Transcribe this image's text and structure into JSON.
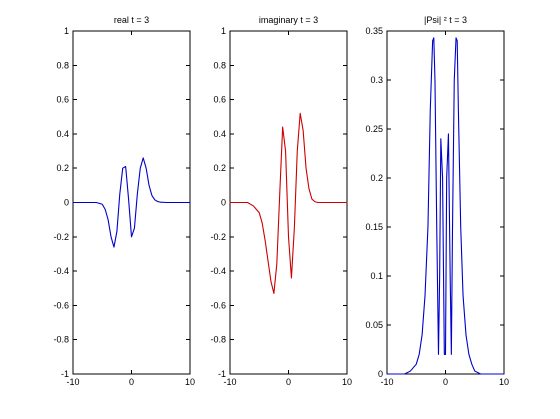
{
  "chart_data": [
    {
      "type": "line",
      "title": "real t = 3",
      "xlim": [
        -10,
        10
      ],
      "ylim": [
        -1,
        1
      ],
      "xticks": [
        -10,
        0,
        10
      ],
      "yticks": [
        -1,
        -0.8,
        -0.6,
        -0.4,
        -0.2,
        0,
        0.2,
        0.4,
        0.6,
        0.8,
        1
      ],
      "grid": false,
      "series": [
        {
          "color": "#0000cc",
          "x": [
            -10,
            -6,
            -5,
            -4.5,
            -4,
            -3.5,
            -3,
            -2.5,
            -2,
            -1.5,
            -1,
            -0.5,
            0,
            0.5,
            1,
            1.5,
            2,
            2.5,
            3,
            3.5,
            4,
            4.5,
            5,
            6,
            10
          ],
          "y": [
            0,
            0,
            -0.01,
            -0.04,
            -0.1,
            -0.2,
            -0.26,
            -0.17,
            0.05,
            0.2,
            0.21,
            0.02,
            -0.2,
            -0.15,
            0.05,
            0.2,
            0.26,
            0.2,
            0.1,
            0.04,
            0.015,
            0.005,
            0.002,
            0,
            0
          ]
        }
      ]
    },
    {
      "type": "line",
      "title": "imaginary t = 3",
      "xlim": [
        -10,
        10
      ],
      "ylim": [
        -1,
        1
      ],
      "xticks": [
        -10,
        0,
        10
      ],
      "yticks": [
        -1,
        -0.8,
        -0.6,
        -0.4,
        -0.2,
        0,
        0.2,
        0.4,
        0.6,
        0.8,
        1
      ],
      "grid": false,
      "series": [
        {
          "color": "#cc0000",
          "x": [
            -10,
            -7,
            -6,
            -5,
            -4.5,
            -4,
            -3.5,
            -3,
            -2.5,
            -2,
            -1.5,
            -1,
            -0.5,
            0,
            0.5,
            1,
            1.5,
            2,
            2.5,
            3,
            3.5,
            4,
            4.5,
            5,
            6,
            10
          ],
          "y": [
            0,
            0,
            -0.02,
            -0.06,
            -0.12,
            -0.22,
            -0.34,
            -0.46,
            -0.53,
            -0.36,
            0.05,
            0.44,
            0.3,
            -0.2,
            -0.44,
            -0.15,
            0.3,
            0.52,
            0.42,
            0.2,
            0.08,
            0.02,
            0.005,
            0,
            0,
            0
          ]
        }
      ]
    },
    {
      "type": "line",
      "title": "|Psi| ² t = 3",
      "xlim": [
        -10,
        10
      ],
      "ylim": [
        0,
        0.35
      ],
      "xticks": [
        -10,
        0,
        10
      ],
      "yticks": [
        0,
        0.05,
        0.1,
        0.15,
        0.2,
        0.25,
        0.3,
        0.35
      ],
      "grid": false,
      "series": [
        {
          "color": "#0000cc",
          "x": [
            -10,
            -7,
            -6,
            -5,
            -4.5,
            -4,
            -3.5,
            -3,
            -2.6,
            -2.2,
            -2,
            -1.8,
            -1.5,
            -1.2,
            -1,
            -0.8,
            -0.5,
            -0.2,
            0,
            0.2,
            0.5,
            0.8,
            1,
            1.2,
            1.5,
            1.8,
            2,
            2.2,
            2.6,
            3,
            3.5,
            4,
            4.5,
            5,
            6,
            7,
            10
          ],
          "y": [
            0,
            0,
            0.003,
            0.01,
            0.02,
            0.04,
            0.08,
            0.15,
            0.27,
            0.34,
            0.343,
            0.3,
            0.15,
            0.02,
            0.1,
            0.24,
            0.2,
            0.02,
            0.02,
            0.2,
            0.245,
            0.1,
            0.02,
            0.15,
            0.3,
            0.343,
            0.34,
            0.27,
            0.15,
            0.08,
            0.04,
            0.02,
            0.01,
            0.003,
            0,
            0,
            0
          ]
        }
      ]
    }
  ]
}
